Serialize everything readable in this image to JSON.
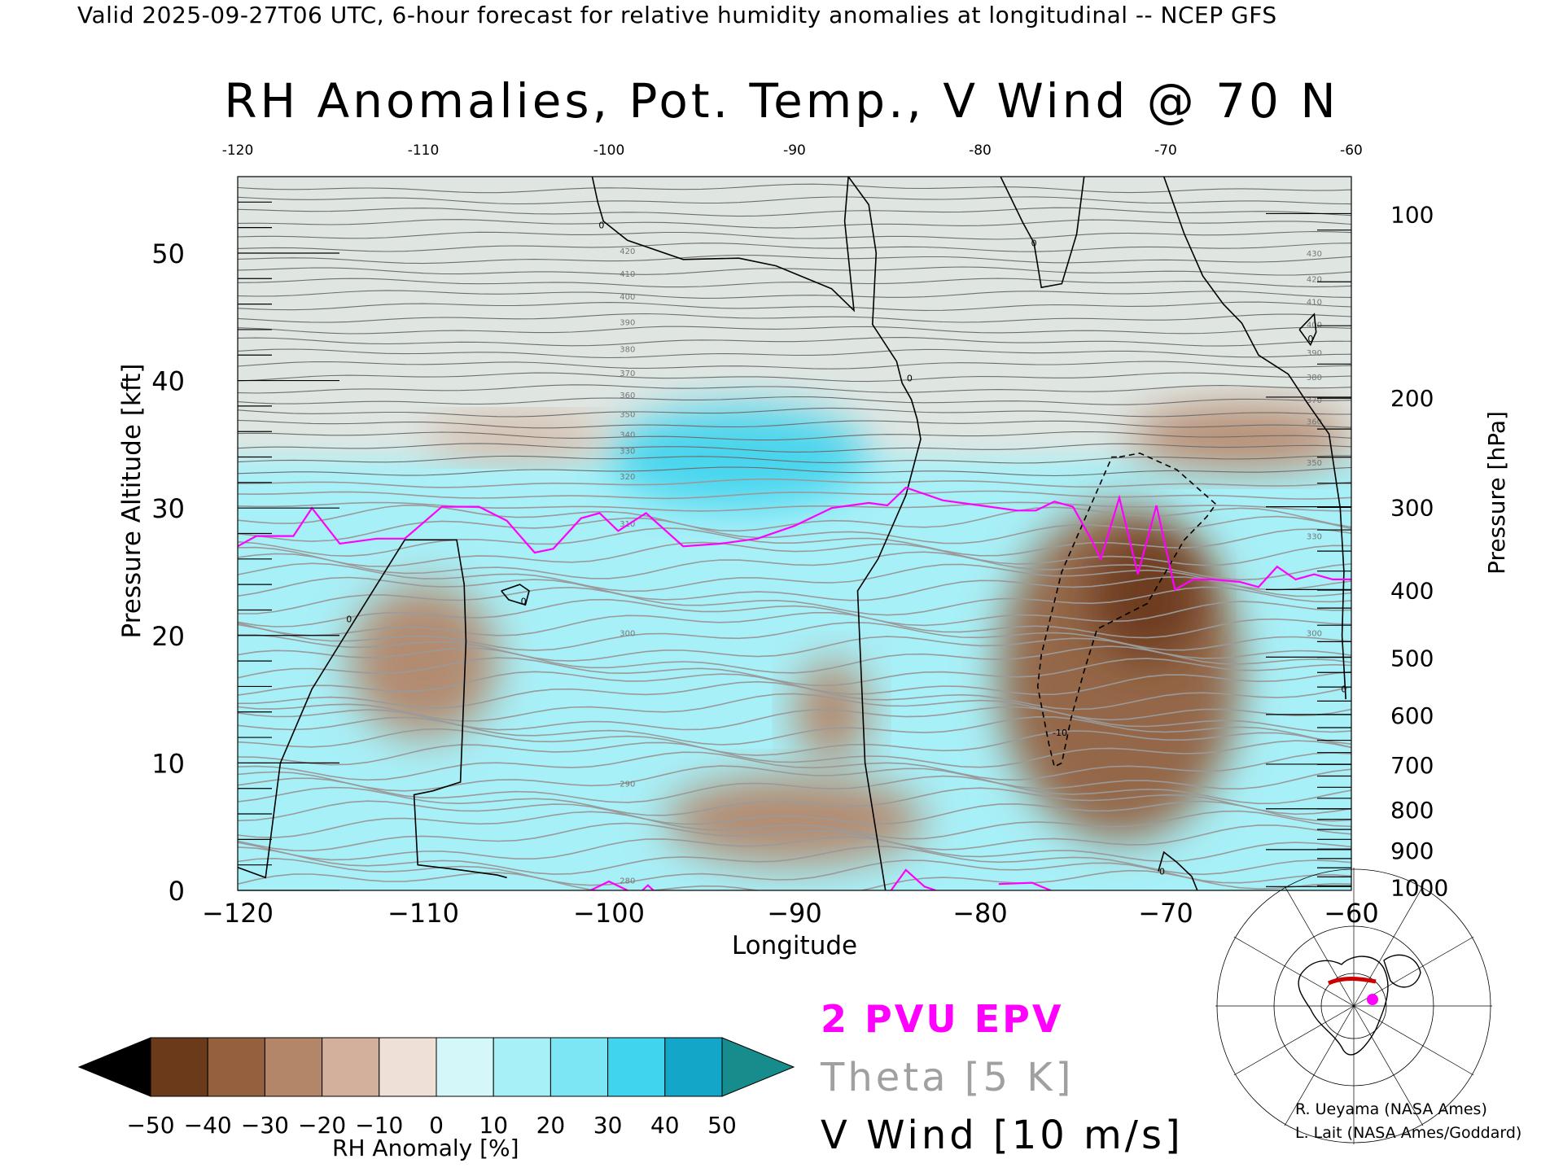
{
  "header": {
    "valid_line": "Valid 2025-09-27T06 UTC, 6-hour forecast for relative humidity anomalies at longitudinal -- NCEP GFS"
  },
  "chart_data": {
    "type": "heatmap",
    "title": "RH Anomalies, Pot. Temp., V Wind @ 70 N",
    "xlabel": "Longitude",
    "ylabel": "Pressure Altitude [kft]",
    "y2label": "Pressure [hPa]",
    "xlim": [
      -120,
      -60
    ],
    "ylim": [
      0,
      56
    ],
    "x_ticks": [
      -120,
      -110,
      -100,
      -90,
      -80,
      -70,
      -60
    ],
    "x_tick_labels": [
      "−120",
      "−110",
      "−100",
      "−90",
      "−80",
      "−70",
      "−60"
    ],
    "top_tick_labels": [
      "-120",
      "-110",
      "-100",
      "-90",
      "-80",
      "-70",
      "-60"
    ],
    "y_ticks": [
      0,
      10,
      20,
      30,
      40,
      50
    ],
    "y_tick_labels": [
      "0",
      "10",
      "20",
      "30",
      "40",
      "50"
    ],
    "pressure_ticks": [
      {
        "hpa": 100,
        "kft": 53.1
      },
      {
        "hpa": 200,
        "kft": 38.7
      },
      {
        "hpa": 300,
        "kft": 30.1
      },
      {
        "hpa": 400,
        "kft": 23.6
      },
      {
        "hpa": 500,
        "kft": 18.3
      },
      {
        "hpa": 600,
        "kft": 13.8
      },
      {
        "hpa": 700,
        "kft": 9.9
      },
      {
        "hpa": 800,
        "kft": 6.4
      },
      {
        "hpa": 900,
        "kft": 3.2
      },
      {
        "hpa": 1000,
        "kft": 0.3
      }
    ],
    "pressure_tick_labels": [
      "100",
      "200",
      "300",
      "400",
      "500",
      "600",
      "700",
      "800",
      "900",
      "1000"
    ],
    "colorbar": {
      "label": "RH Anomaly [%]",
      "ticks": [
        -50,
        -40,
        -30,
        -20,
        -10,
        0,
        10,
        20,
        30,
        40,
        50
      ],
      "tick_labels": [
        "−50",
        "−40",
        "−30",
        "−20",
        "−10",
        "0",
        "10",
        "20",
        "30",
        "40",
        "50"
      ],
      "colors": [
        "#3a1b08",
        "#6b3a1a",
        "#94603e",
        "#b3866a",
        "#d2b09c",
        "#efe0d7",
        "#d4f8fa",
        "#a8f0f8",
        "#7ce6f4",
        "#40d4ee",
        "#14a6c8",
        "#0f8a8a"
      ],
      "low_arrow_color": "#000000",
      "high_arrow_color": "#168c8c"
    },
    "background_color": "#dfe6e2",
    "rh_anomaly_regions": [
      {
        "kind": "moist",
        "lon": [
          -120,
          -60
        ],
        "kft": [
          0,
          34
        ],
        "value": 15
      },
      {
        "kind": "moist",
        "lon": [
          -100,
          -86
        ],
        "kft": [
          30,
          38
        ],
        "value": 35
      },
      {
        "kind": "dry",
        "lon": [
          -114,
          -106
        ],
        "kft": [
          12,
          24
        ],
        "value": -25
      },
      {
        "kind": "dry",
        "lon": [
          -90,
          -86
        ],
        "kft": [
          10,
          18
        ],
        "value": -20
      },
      {
        "kind": "dry",
        "lon": [
          -97,
          -83
        ],
        "kft": [
          2,
          9
        ],
        "value": -20
      },
      {
        "kind": "dry",
        "lon": [
          -79,
          -66
        ],
        "kft": [
          4,
          30
        ],
        "value": -35
      },
      {
        "kind": "dry",
        "lon": [
          -74,
          -68
        ],
        "kft": [
          18,
          28
        ],
        "value": -48
      },
      {
        "kind": "dry",
        "lon": [
          -72,
          -60
        ],
        "kft": [
          33,
          38
        ],
        "value": -25
      },
      {
        "kind": "dry",
        "lon": [
          -110,
          -100
        ],
        "kft": [
          34,
          37
        ],
        "value": -15
      }
    ],
    "theta_levels": [
      280,
      290,
      300,
      310,
      320,
      330,
      340,
      350,
      360,
      370,
      380,
      390,
      400,
      410,
      420
    ],
    "theta_label_lon": -99,
    "theta_label_kft": [
      0.8,
      8.4,
      20.2,
      28.8,
      32.5,
      34.5,
      35.8,
      37.4,
      38.9,
      40.6,
      42.5,
      44.6,
      46.6,
      48.4,
      50.2
    ],
    "theta_label_right_kft": [
      20.2,
      27.8,
      33.6,
      36.8,
      38.5,
      40.3,
      42.2,
      44.4,
      46.2,
      48.0,
      50.0
    ],
    "theta_label_right_levels": [
      300,
      330,
      350,
      360,
      370,
      380,
      390,
      400,
      410,
      420,
      430
    ],
    "theta_lines_count": 60,
    "epv_2pvu_line": {
      "lon": [
        -120,
        -119,
        -117,
        -116,
        -114.5,
        -112.5,
        -111,
        -109,
        -107,
        -105.5,
        -104,
        -103,
        -101.5,
        -100.5,
        -99.5,
        -98,
        -96,
        -94,
        -92,
        -90,
        -88,
        -86,
        -85,
        -84,
        -82,
        -80,
        -78,
        -77,
        -76,
        -75,
        -74,
        -73.5,
        -72.5,
        -71.5,
        -70.5,
        -69.5,
        -68.5,
        -67.5,
        -66,
        -65,
        -64,
        -63,
        -62,
        -61,
        -60
      ],
      "kft": [
        27,
        27.8,
        27.8,
        30,
        27.2,
        27.6,
        27.6,
        30.1,
        30.1,
        29,
        26.5,
        26.8,
        29.2,
        29.6,
        28.2,
        29.6,
        27,
        27.2,
        27.6,
        28.6,
        30,
        30.4,
        30.2,
        31.6,
        30.6,
        30.2,
        29.8,
        29.8,
        30.5,
        30.1,
        27.5,
        26,
        30.8,
        24.8,
        30.2,
        23.6,
        24.4,
        24.4,
        24.2,
        23.8,
        25.4,
        24.4,
        24.8,
        24.4,
        24.4
      ]
    },
    "epv_2pvu_surface_segments": [
      {
        "lon": [
          -101,
          -100,
          -99
        ],
        "kft": [
          0,
          0.7,
          0
        ]
      },
      {
        "lon": [
          -98.2,
          -97.9,
          -97.6
        ],
        "kft": [
          0,
          0.4,
          0
        ]
      },
      {
        "lon": [
          -84.8,
          -84,
          -83,
          -82.4
        ],
        "kft": [
          0,
          1.6,
          0.3,
          0
        ]
      },
      {
        "lon": [
          -79,
          -77.2,
          -76.2
        ],
        "kft": [
          0.5,
          0.6,
          0
        ]
      }
    ],
    "v_wind_contours": [
      {
        "style": "solid",
        "lon": [
          -120,
          -118.5,
          -117.7,
          -116,
          -114,
          -111,
          -108.2,
          -107.8,
          -107.7,
          -108,
          -109.5,
          -110.5,
          -110.3,
          -108,
          -106,
          -105.5
        ],
        "kft": [
          1.8,
          1,
          10,
          15.8,
          20.5,
          27.5,
          27.5,
          24,
          19.5,
          8.5,
          7.8,
          7.5,
          2,
          1.6,
          1.2,
          1
        ],
        "label": "0",
        "label_lon": -114,
        "label_kft": 21.3
      },
      {
        "style": "solid",
        "lon": [
          -105.8,
          -104.8,
          -104.3,
          -104.5,
          -105.4,
          -105.8
        ],
        "kft": [
          23.5,
          24,
          23.5,
          22.4,
          22.8,
          23.5
        ],
        "label": "0",
        "label_lon": -104.6,
        "label_kft": 22.7
      },
      {
        "style": "solid",
        "lon": [
          -100.9,
          -100.6,
          -100.3,
          -99,
          -96,
          -93,
          -91,
          -88,
          -86.8,
          -87.3,
          -87.1
        ],
        "kft": [
          56,
          54,
          52.5,
          51,
          49.5,
          49.6,
          49,
          47.2,
          45.5,
          52.5,
          56
        ],
        "label": "0",
        "label_lon": -100.4,
        "label_kft": 52.2
      },
      {
        "style": "solid",
        "lon": [
          -87.1,
          -86,
          -85.6,
          -85.8,
          -84.5,
          -84.2,
          -83.7,
          -83.4,
          -83.2,
          -84,
          -85.5,
          -86.6,
          -86.2,
          -85.1
        ],
        "kft": [
          56,
          53.8,
          50,
          44.4,
          41.5,
          39.8,
          38.5,
          37,
          35.4,
          31,
          26,
          23.5,
          10,
          0
        ],
        "label": "0",
        "label_lon": -83.8,
        "label_kft": 40.2
      },
      {
        "style": "solid",
        "lon": [
          -78.9,
          -77.7,
          -77.1,
          -76.7,
          -75.6,
          -74.8,
          -74.4
        ],
        "kft": [
          56,
          52.4,
          50.8,
          47.3,
          47.6,
          51.5,
          56
        ],
        "label": "0",
        "label_lon": -77.1,
        "label_kft": 50.8
      },
      {
        "style": "solid",
        "lon": [
          -70.1,
          -69,
          -68,
          -66.9,
          -65.9,
          -65,
          -63.4,
          -62.4,
          -61.2,
          -60.6,
          -60.4,
          -60.5,
          -60.3
        ],
        "kft": [
          56,
          51.5,
          48.2,
          46,
          44.5,
          42,
          40.5,
          38.3,
          35.8,
          30,
          25,
          20,
          15
        ],
        "label": "0",
        "label_lon": -60.4,
        "label_kft": 15.8
      },
      {
        "style": "solid",
        "lon": [
          -62.8,
          -62,
          -61.9,
          -62.2,
          -62.8
        ],
        "kft": [
          44,
          45.2,
          43.8,
          42.8,
          44
        ],
        "label": "0",
        "label_lon": -62.2,
        "label_kft": 43.3
      },
      {
        "style": "solid",
        "lon": [
          -70.4,
          -70.1,
          -69.4,
          -68.6,
          -68.3
        ],
        "kft": [
          1.5,
          3,
          2.2,
          1.1,
          0
        ],
        "label": "0",
        "label_lon": -70.2,
        "label_kft": 1.5
      },
      {
        "style": "dashed",
        "lon": [
          -72.5,
          -71.4,
          -69.4,
          -67.3,
          -67.8,
          -69,
          -71,
          -73.7,
          -74.4,
          -75.1,
          -75.6,
          -76,
          -76.3,
          -76.9,
          -76.7,
          -75.6,
          -74.7,
          -72.9,
          -72.5
        ],
        "kft": [
          34,
          34.3,
          33,
          30.3,
          29.3,
          27.5,
          22.5,
          20.5,
          17.2,
          13.5,
          10,
          9.7,
          11.5,
          16,
          18.5,
          25,
          28,
          34,
          34
        ],
        "label": "-10",
        "label_lon": -75.7,
        "label_kft": 12.4
      }
    ]
  },
  "legend": {
    "epv": "2 PVU EPV",
    "theta": "Theta [5 K]",
    "wind": "V Wind [10 m/s]"
  },
  "credits": {
    "line1": "R. Ueyama (NASA Ames)",
    "line2": "L. Lait (NASA Ames/Goddard)"
  },
  "inset_map": {
    "marker_color": "#ff00ff",
    "track_color": "#cc0000"
  }
}
